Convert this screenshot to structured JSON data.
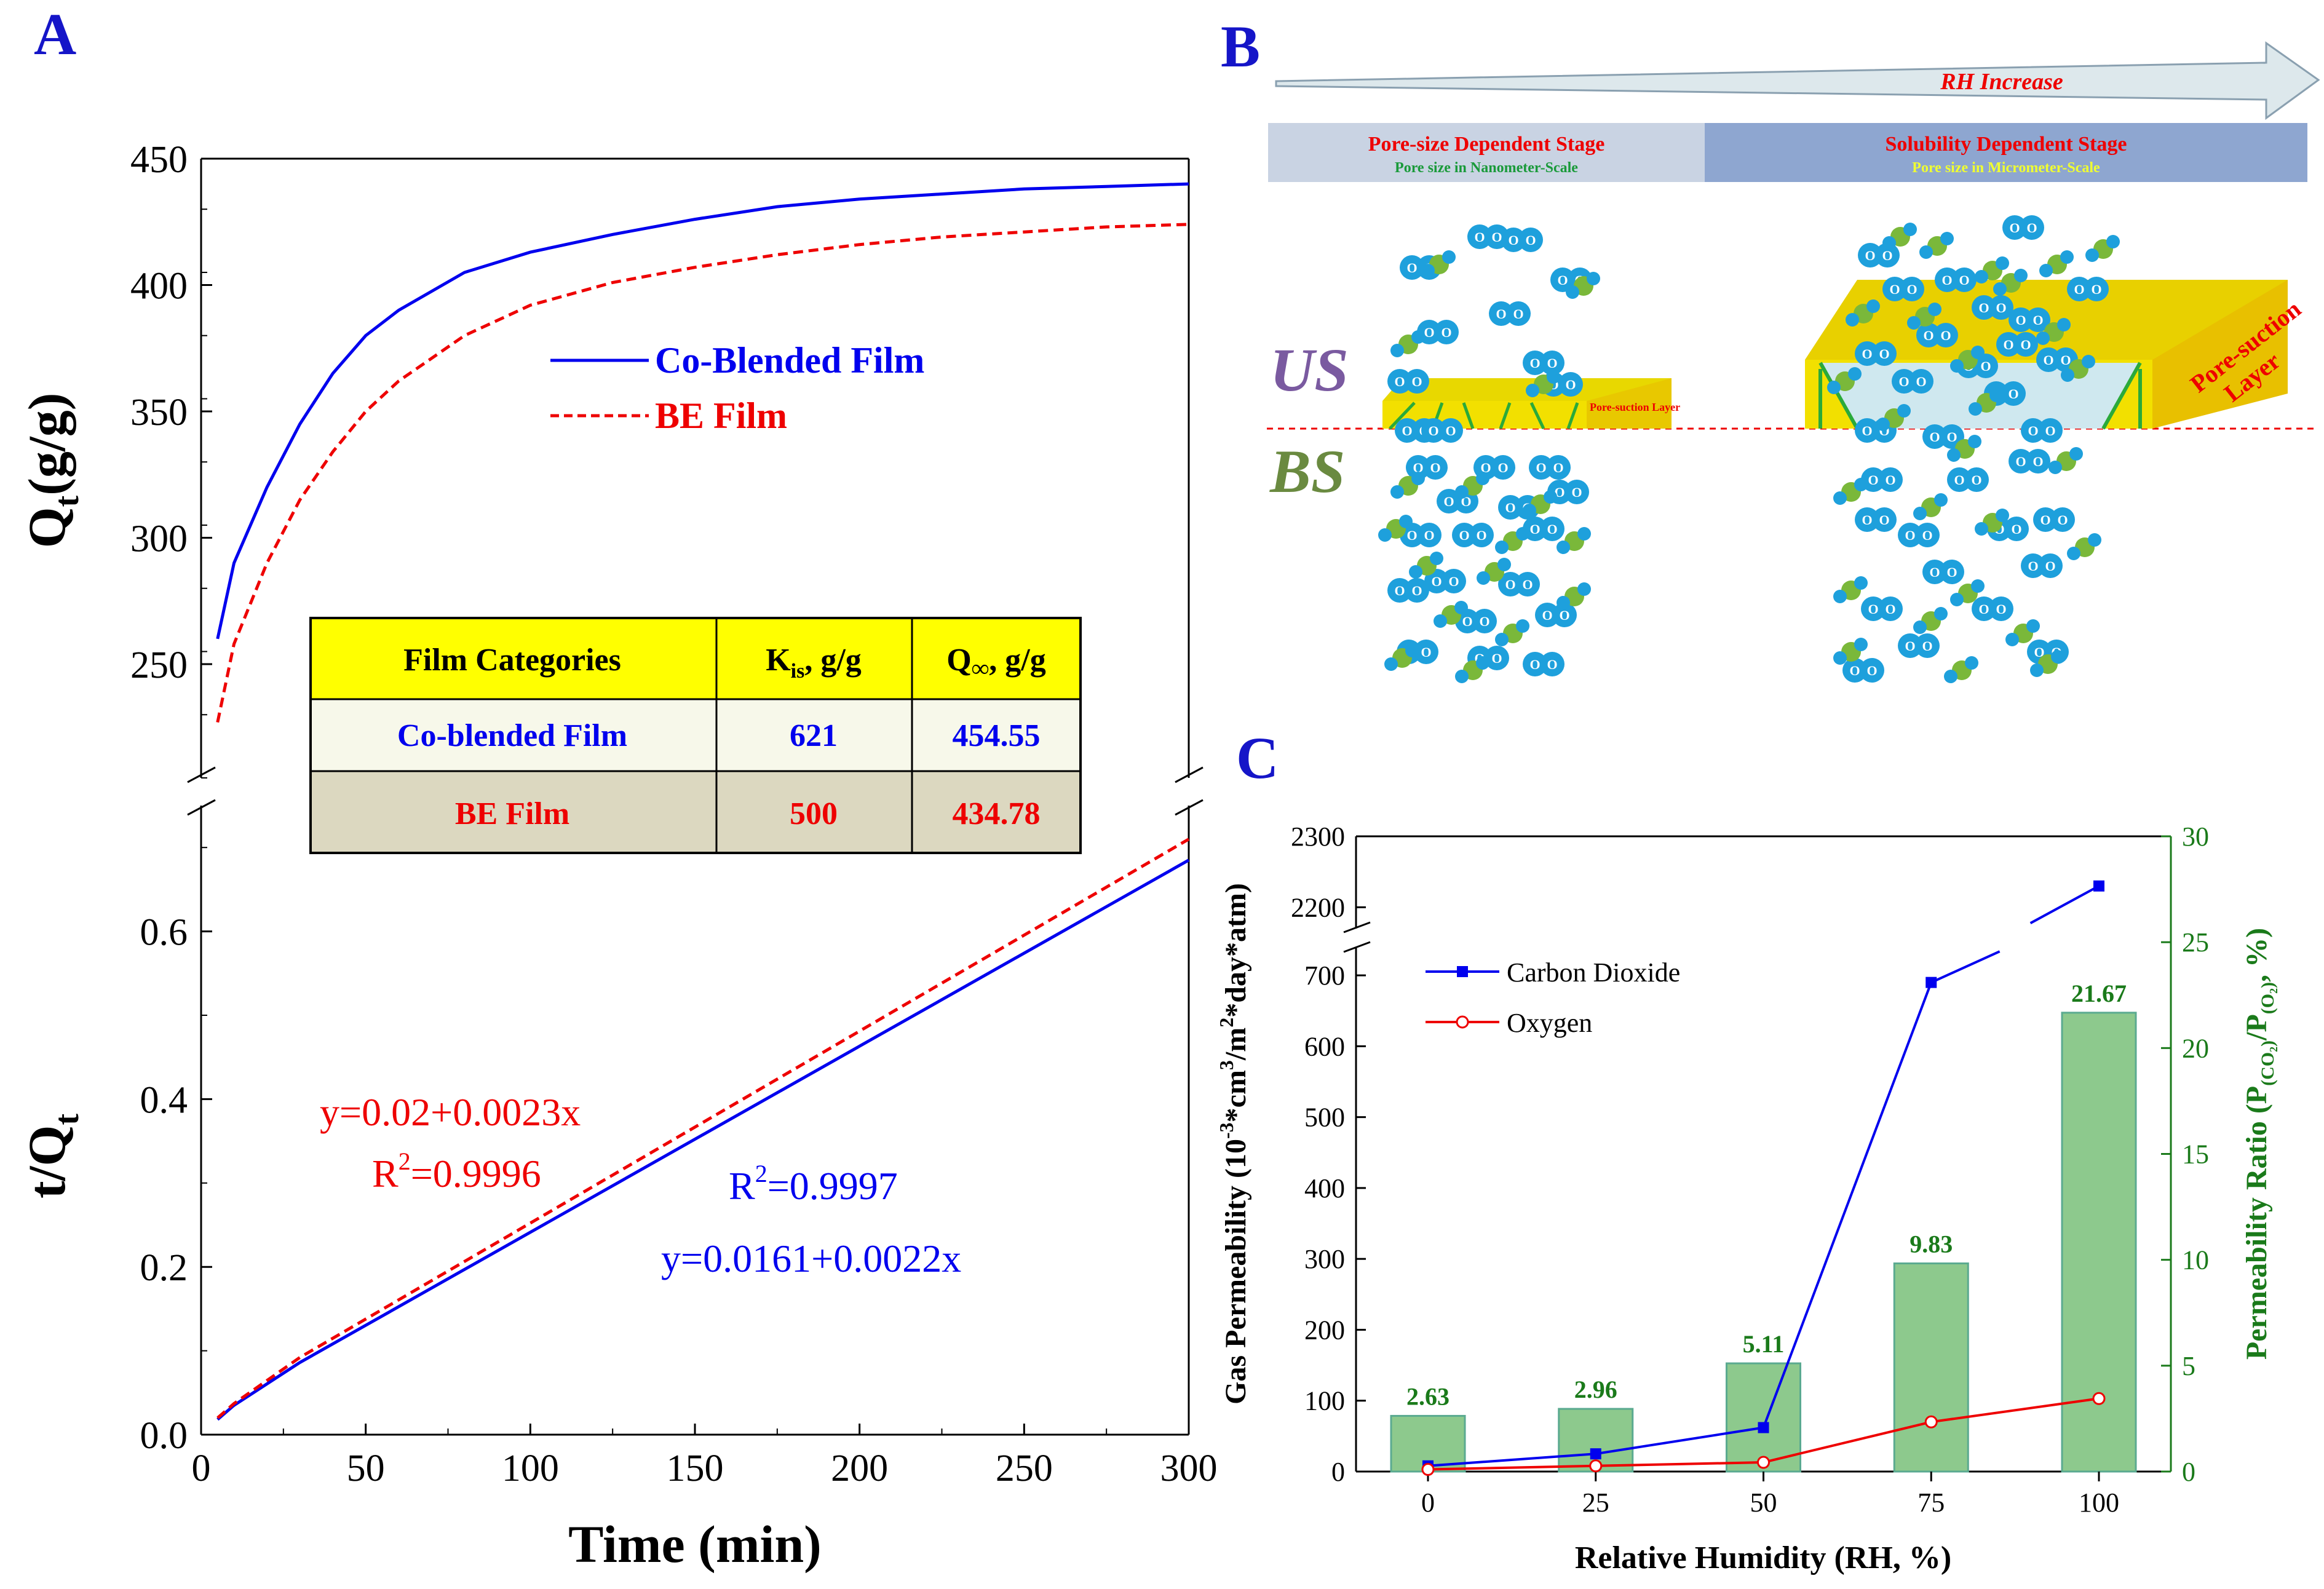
{
  "panels": {
    "a": "A",
    "b": "B",
    "c": "C"
  },
  "chart_data": [
    {
      "id": "A-top",
      "type": "line",
      "ylabel": "Q",
      "ylabel_sub": "t",
      "ylabel_unit": "(g/g)",
      "ylim": [
        205,
        450
      ],
      "yticks": [
        250,
        300,
        350,
        400,
        450
      ],
      "xlim": [
        0,
        300
      ],
      "series": [
        {
          "name": "Co-Blended Film",
          "color": "#0000ee",
          "style": "solid",
          "x": [
            5,
            10,
            20,
            30,
            40,
            50,
            60,
            80,
            100,
            125,
            150,
            175,
            200,
            225,
            250,
            275,
            300
          ],
          "y": [
            260,
            290,
            320,
            345,
            365,
            380,
            390,
            405,
            413,
            420,
            426,
            431,
            434,
            436,
            438,
            439,
            440
          ]
        },
        {
          "name": "BE Film",
          "color": "#ee0000",
          "style": "dashed",
          "x": [
            5,
            10,
            20,
            30,
            40,
            50,
            60,
            80,
            100,
            125,
            150,
            175,
            200,
            225,
            250,
            275,
            300
          ],
          "y": [
            227,
            258,
            290,
            315,
            334,
            350,
            362,
            380,
            392,
            401,
            407,
            412,
            416,
            419,
            421,
            423,
            424
          ]
        }
      ],
      "legend": [
        {
          "label": "Co-Blended Film",
          "color": "#0000ee"
        },
        {
          "label": "BE Film",
          "color": "#ee0000"
        }
      ]
    },
    {
      "id": "A-bottom",
      "type": "line",
      "xlabel": "Time (min)",
      "ylabel": "t/Q",
      "ylabel_sub": "t",
      "xlim": [
        0,
        300
      ],
      "ylim": [
        0,
        0.75
      ],
      "xticks": [
        0,
        50,
        100,
        150,
        200,
        250,
        300
      ],
      "yticks": [
        0.0,
        0.2,
        0.4,
        0.6
      ],
      "ytick_labels": [
        "0.0",
        "0.2",
        "0.4",
        "0.6"
      ],
      "series": [
        {
          "name": "Co-Blended Film",
          "color": "#0000ee",
          "style": "solid",
          "x": [
            5,
            10,
            30,
            300
          ],
          "y": [
            0.018,
            0.035,
            0.086,
            0.685
          ]
        },
        {
          "name": "BE Film",
          "color": "#ee0000",
          "style": "dashed",
          "x": [
            5,
            10,
            30,
            300
          ],
          "y": [
            0.02,
            0.037,
            0.092,
            0.71
          ]
        }
      ],
      "annotations": {
        "be_eq": "y=0.02+0.0023x",
        "be_r2_prefix": "R",
        "be_r2_sup": "2",
        "be_r2_value": "=0.9996",
        "co_r2_prefix": "R",
        "co_r2_sup": "2",
        "co_r2_value": "=0.9997",
        "co_eq": "y=0.0161+0.0022x"
      }
    },
    {
      "id": "C",
      "type": "bar+line",
      "xlabel": "Relative Humidity (RH, %)",
      "ylabel": "Gas Permeability (10",
      "ylabel_sup": "-3",
      "ylabel_mid": "*cm",
      "ylabel_sup2": "3",
      "ylabel_mid2": "/m",
      "ylabel_sup3": "2",
      "ylabel_end": "*day*atm)",
      "y2label_start": "Permeability Ratio (P",
      "y2label_sub1": "(CO₂)",
      "y2label_mid": "/P",
      "y2label_sub2": "(O₂)",
      "y2label_end": ", %)",
      "x": [
        0,
        25,
        50,
        75,
        100
      ],
      "xticks": [
        0,
        25,
        50,
        75,
        100
      ],
      "ylim_lower": [
        0,
        740
      ],
      "yticks_lower": [
        0,
        100,
        200,
        300,
        400,
        500,
        600,
        700
      ],
      "ylim_upper": [
        2170,
        2300
      ],
      "yticks_upper": [
        2200,
        2300
      ],
      "y2lim": [
        0,
        30
      ],
      "y2ticks": [
        0,
        5,
        10,
        15,
        20,
        25,
        30
      ],
      "series": [
        {
          "name": "Carbon Dioxide",
          "color": "#0000ee",
          "marker": "square",
          "y": [
            8,
            25,
            62,
            690,
            2230
          ]
        },
        {
          "name": "Oxygen",
          "color": "#ee0000",
          "marker": "circle-open",
          "y": [
            3,
            8,
            13,
            70,
            103
          ]
        }
      ],
      "bars": {
        "name": "Permeability Ratio",
        "color": "#8dc98d",
        "values": [
          2.63,
          2.96,
          5.11,
          9.83,
          21.67
        ],
        "labels": [
          "2.63",
          "2.96",
          "5.11",
          "9.83",
          "21.67"
        ]
      }
    }
  ],
  "table": {
    "headers": [
      "Film Categories",
      "K",
      "is",
      ",  g/g",
      "Q",
      "∞",
      ",  g/g"
    ],
    "rows": [
      {
        "name": "Co-blended Film",
        "k": "621",
        "q": "454.55",
        "color": "#0000ee"
      },
      {
        "name": "BE Film",
        "k": "500",
        "q": "434.78",
        "color": "#ee0000"
      }
    ]
  },
  "diagram": {
    "arrow_label": "RH Increase",
    "stage1_title": "Pore-size Dependent Stage",
    "stage1_sub": "Pore size in Nanometer-Scale",
    "stage2_title": "Solubility Dependent Stage",
    "stage2_sub": "Pore size in Micrometer-Scale",
    "us": "US",
    "bs": "BS",
    "layer_small": "Pore-suction Layer",
    "layer_big_1": "Pore-suction",
    "layer_big_2": "Layer",
    "molecule_letter": "O"
  },
  "colors": {
    "blue": "#0000ee",
    "red": "#ee0000",
    "green": "#1a7a1a",
    "bar": "#8dc98d",
    "panel_letter": "#1515c8"
  }
}
